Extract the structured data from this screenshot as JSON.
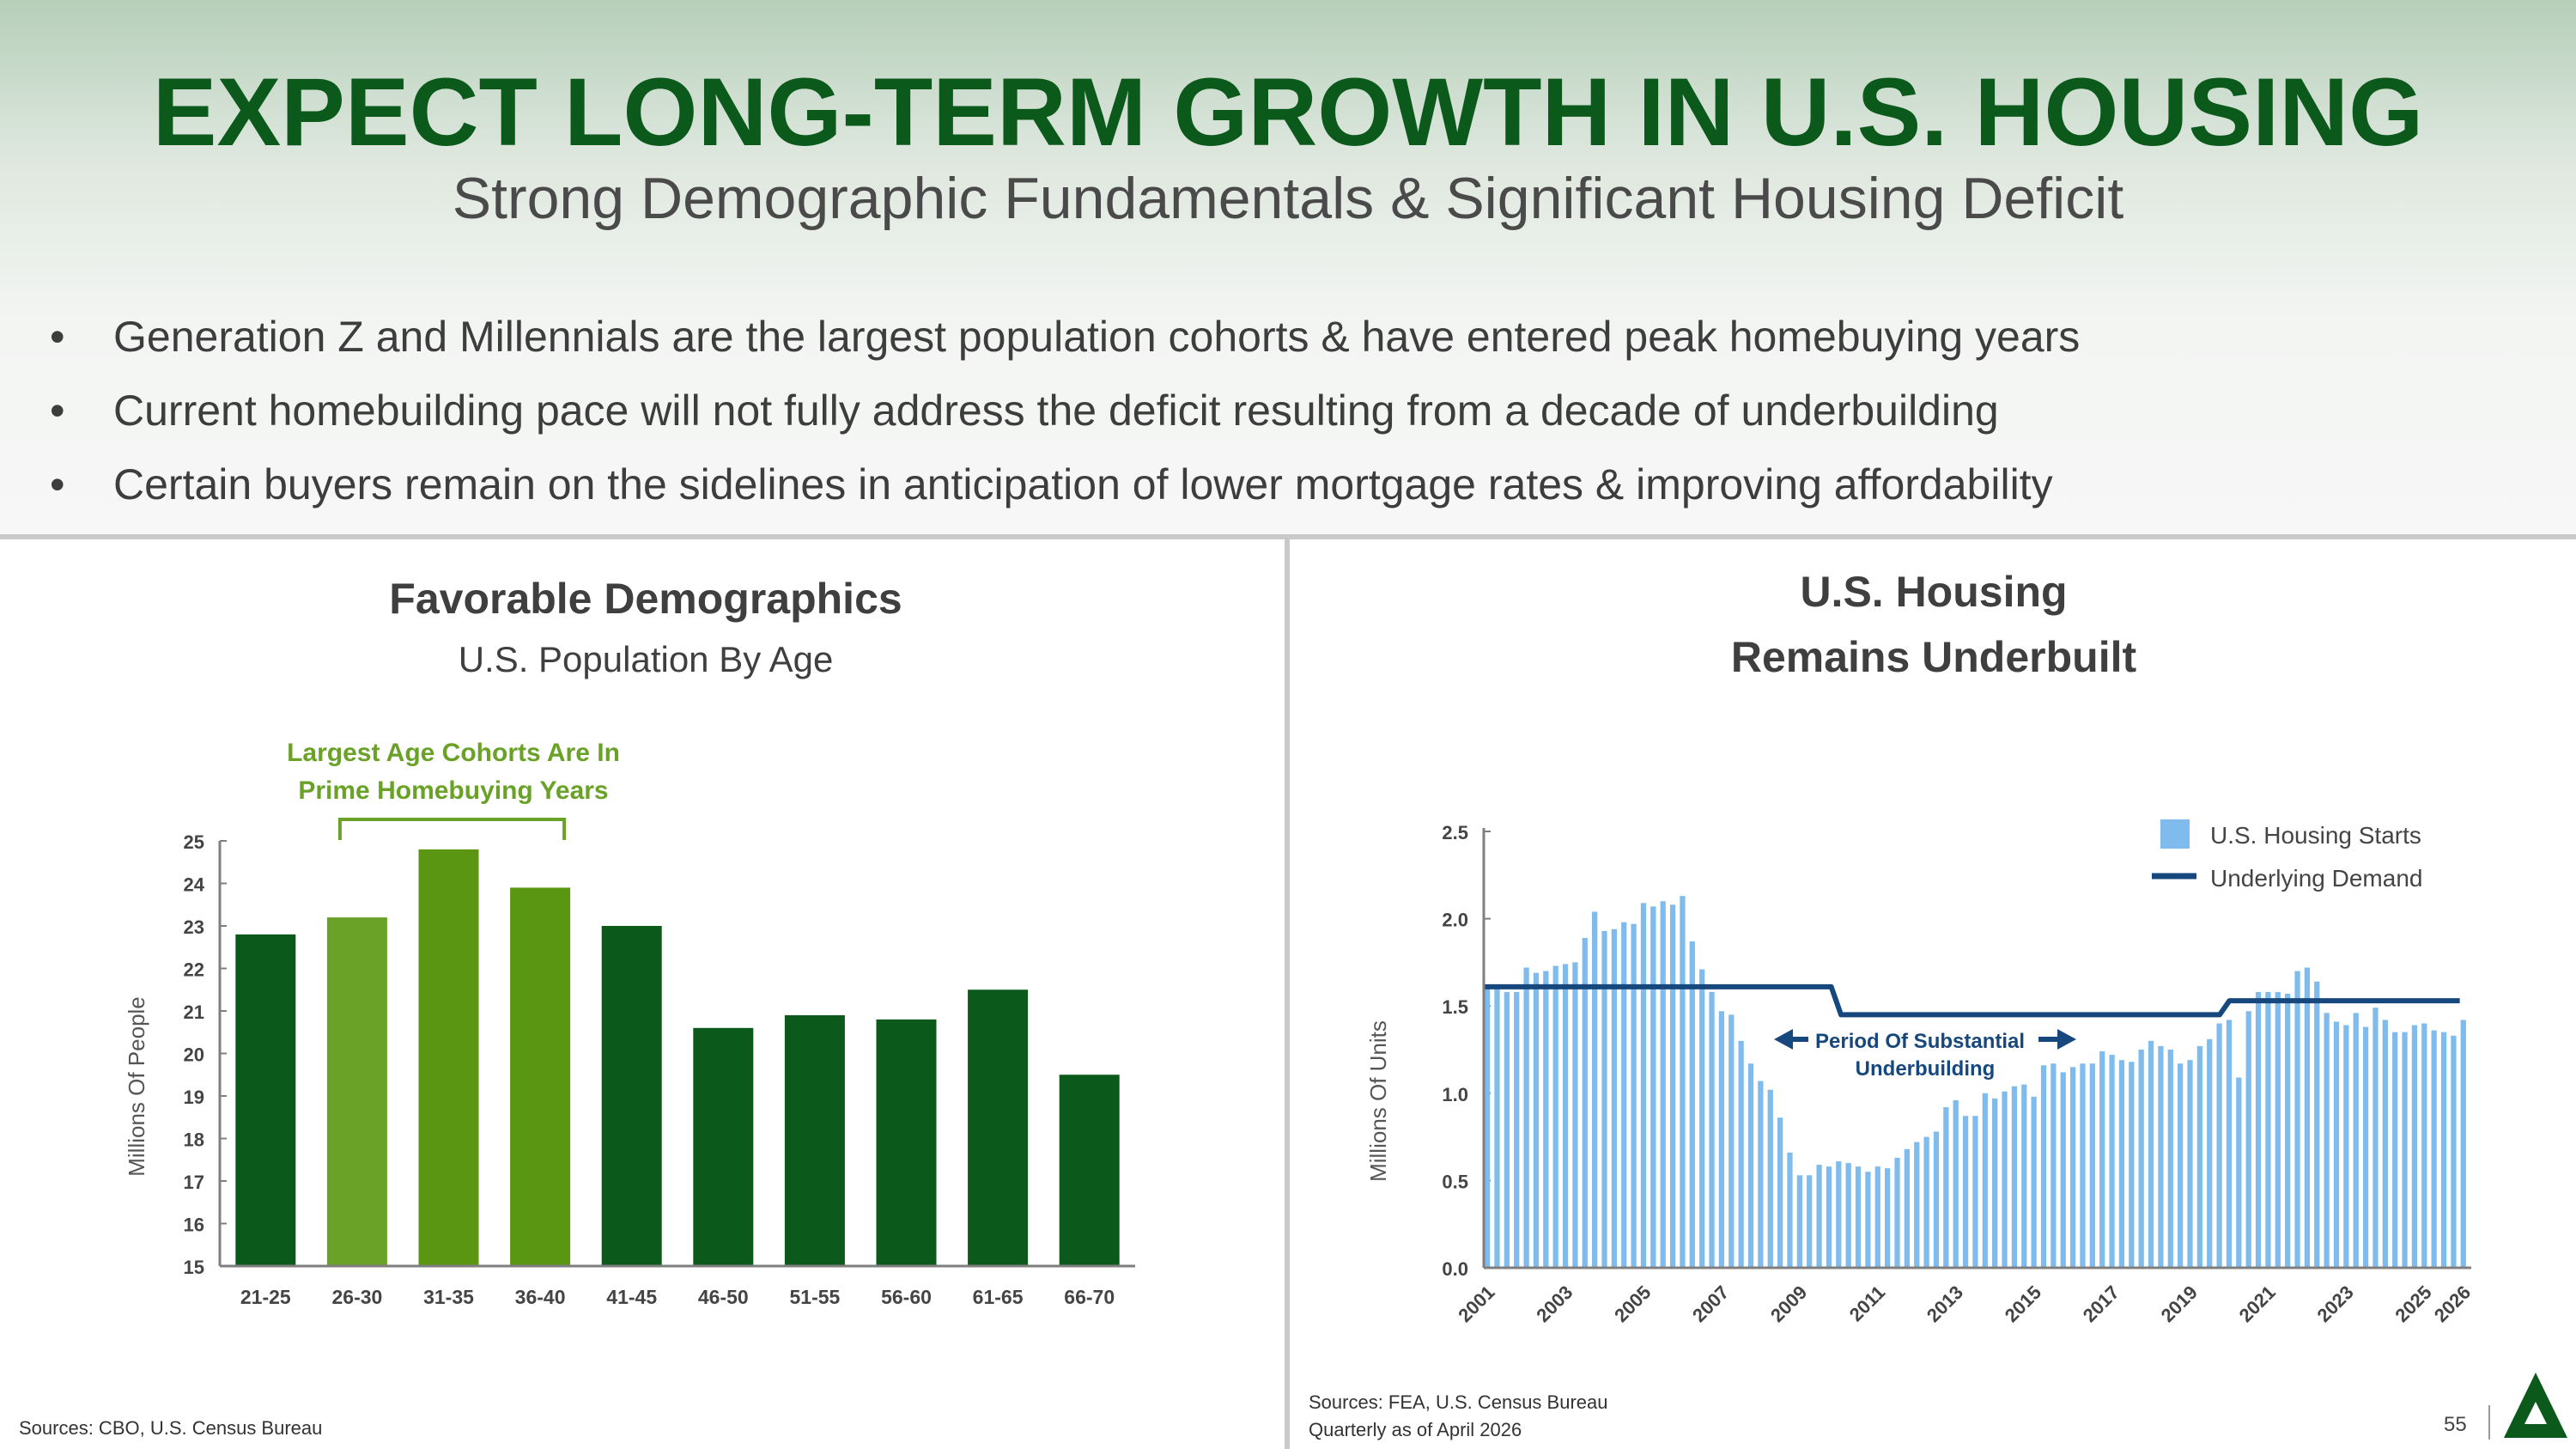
{
  "header": {
    "title": "EXPECT LONG-TERM GROWTH IN U.S. HOUSING",
    "subtitle": "Strong Demographic Fundamentals & Significant Housing Deficit"
  },
  "bullets": [
    "Generation Z and Millennials are the largest population cohorts & have entered peak homebuying years",
    "Current homebuilding pace will not fully address the deficit resulting from a decade of underbuilding",
    "Certain buyers remain on the sidelines in anticipation of lower mortgage rates & improving affordability"
  ],
  "bullet_symbol": "•",
  "left_panel": {
    "sources": "Sources: CBO, U.S. Census Bureau"
  },
  "right_panel": {
    "sources_line1": "Sources: FEA, U.S. Census Bureau",
    "sources_line2": "Quarterly as of April 2026"
  },
  "footer": {
    "page_number": "55",
    "logo_icon": "company-logo-icon"
  },
  "colors": {
    "title_green": "#0b5a1b",
    "bar_dark": "#0b5a1b",
    "bar_light": "#6aa228",
    "bar_mid": "#5a9612",
    "annotation_green": "#6aa228",
    "starts_blue": "#7fbbec",
    "demand_navy": "#17487d"
  },
  "chart_data": [
    {
      "type": "bar",
      "title": "Favorable Demographics",
      "subtitle": "U.S. Population By Age",
      "xlabel": "",
      "ylabel": "Millions Of People",
      "ylim": [
        15,
        25
      ],
      "yticks": [
        "15",
        "16",
        "17",
        "18",
        "19",
        "20",
        "21",
        "22",
        "23",
        "24",
        "25"
      ],
      "categories": [
        "21-25",
        "26-30",
        "31-35",
        "36-40",
        "41-45",
        "46-50",
        "51-55",
        "56-60",
        "61-65",
        "66-70"
      ],
      "values": [
        22.8,
        23.2,
        24.8,
        23.9,
        23.0,
        20.6,
        20.9,
        20.8,
        21.5,
        19.5
      ],
      "bar_colors": [
        "#0b5a1b",
        "#6aa228",
        "#5a9612",
        "#5a9612",
        "#0b5a1b",
        "#0b5a1b",
        "#0b5a1b",
        "#0b5a1b",
        "#0b5a1b",
        "#0b5a1b"
      ],
      "annotation": {
        "line1": "Largest Age Cohorts Are In",
        "line2": "Prime Homebuying Years",
        "from": "26-30",
        "to": "36-40"
      },
      "grid": false
    },
    {
      "type": "bar",
      "title_line1": "U.S. Housing",
      "title_line2": "Remains Underbuilt",
      "xlabel": "",
      "ylabel": "Millions Of Units",
      "ylim": [
        0,
        2.5
      ],
      "yticks": [
        "0.0",
        "0.5",
        "1.0",
        "1.5",
        "2.0",
        "2.5"
      ],
      "xticks": [
        "2001",
        "2003",
        "2005",
        "2007",
        "2009",
        "2011",
        "2013",
        "2015",
        "2017",
        "2019",
        "2021",
        "2023",
        "2025",
        "2026"
      ],
      "x_range": [
        2001,
        2026.25
      ],
      "legend": {
        "position": "top-right",
        "starts_label": "U.S. Housing Starts",
        "demand_label": "Underlying Demand"
      },
      "series": [
        {
          "name": "U.S. Housing Starts",
          "type": "bar",
          "x_start": 2001,
          "x_step": 0.25,
          "values": [
            1.61,
            1.62,
            1.58,
            1.58,
            1.72,
            1.69,
            1.7,
            1.73,
            1.74,
            1.75,
            1.89,
            2.04,
            1.93,
            1.94,
            1.98,
            1.97,
            2.09,
            2.07,
            2.1,
            2.08,
            2.13,
            1.87,
            1.71,
            1.58,
            1.47,
            1.45,
            1.3,
            1.17,
            1.07,
            1.02,
            0.86,
            0.66,
            0.53,
            0.53,
            0.59,
            0.58,
            0.61,
            0.6,
            0.58,
            0.55,
            0.58,
            0.57,
            0.63,
            0.68,
            0.72,
            0.75,
            0.78,
            0.92,
            0.96,
            0.87,
            0.87,
            1.0,
            0.97,
            1.01,
            1.04,
            1.05,
            0.98,
            1.16,
            1.17,
            1.12,
            1.15,
            1.17,
            1.17,
            1.24,
            1.22,
            1.19,
            1.18,
            1.25,
            1.3,
            1.27,
            1.25,
            1.17,
            1.19,
            1.27,
            1.31,
            1.4,
            1.42,
            1.09,
            1.47,
            1.58,
            1.58,
            1.58,
            1.57,
            1.7,
            1.72,
            1.64,
            1.46,
            1.41,
            1.39,
            1.46,
            1.38,
            1.49,
            1.42,
            1.35,
            1.35,
            1.39,
            1.4,
            1.36,
            1.35,
            1.33,
            1.42
          ]
        },
        {
          "name": "Underlying Demand",
          "type": "step-line",
          "segments": [
            {
              "from": 2001,
              "to": 2009.9,
              "value": 1.61
            },
            {
              "from": 2010.15,
              "to": 2019.85,
              "value": 1.45
            },
            {
              "from": 2020.1,
              "to": 2026,
              "value": 1.53
            }
          ]
        }
      ],
      "annotation": {
        "line1": "Period Of Substantial",
        "line2": "Underbuilding"
      },
      "grid": false
    }
  ]
}
